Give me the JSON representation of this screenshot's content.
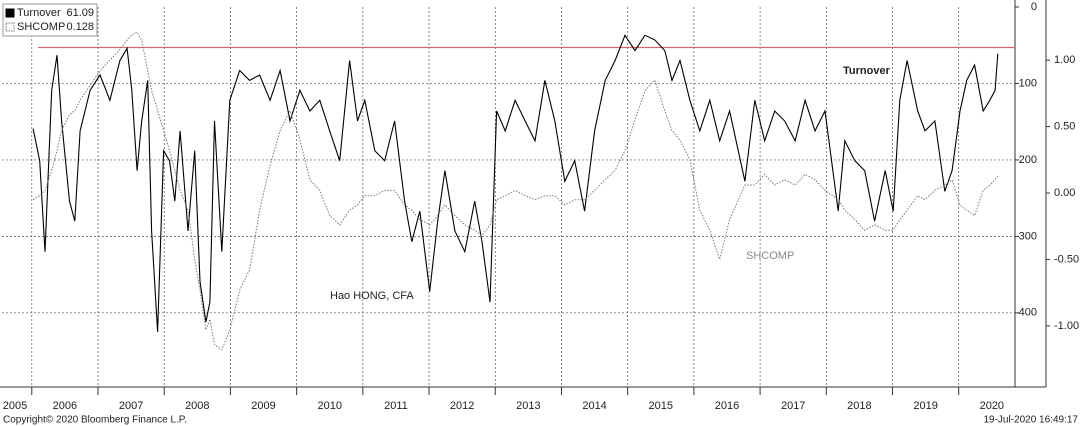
{
  "chart_data": {
    "type": "line",
    "x": [
      2006.02,
      2006.12,
      2006.2,
      2006.3,
      2006.38,
      2006.45,
      2006.57,
      2006.65,
      2006.73,
      2006.88,
      2007.03,
      2007.18,
      2007.33,
      2007.44,
      2007.51,
      2007.59,
      2007.66,
      2007.75,
      2007.81,
      2007.9,
      2007.99,
      2008.08,
      2008.16,
      2008.24,
      2008.36,
      2008.46,
      2008.54,
      2008.63,
      2008.69,
      2008.76,
      2008.87,
      2008.99,
      2009.14,
      2009.29,
      2009.44,
      2009.6,
      2009.75,
      2009.9,
      2010.05,
      2010.2,
      2010.35,
      2010.5,
      2010.65,
      2010.8,
      2010.92,
      2011.03,
      2011.18,
      2011.33,
      2011.48,
      2011.63,
      2011.74,
      2011.86,
      2012.01,
      2012.13,
      2012.24,
      2012.39,
      2012.54,
      2012.69,
      2012.8,
      2012.92,
      2013.02,
      2013.15,
      2013.3,
      2013.45,
      2013.6,
      2013.75,
      2013.9,
      2014.05,
      2014.2,
      2014.35,
      2014.5,
      2014.66,
      2014.81,
      2014.96,
      2015.11,
      2015.26,
      2015.41,
      2015.56,
      2015.67,
      2015.79,
      2015.94,
      2016.09,
      2016.24,
      2016.39,
      2016.54,
      2016.77,
      2016.92,
      2017.07,
      2017.22,
      2017.37,
      2017.53,
      2017.68,
      2017.83,
      2017.98,
      2018.18,
      2018.28,
      2018.43,
      2018.58,
      2018.73,
      2018.89,
      2019.01,
      2019.11,
      2019.22,
      2019.38,
      2019.49,
      2019.64,
      2019.79,
      2019.9,
      2020.02,
      2020.12,
      2020.24,
      2020.37,
      2020.47,
      2020.55,
      2020.59
    ],
    "series": [
      {
        "name": "Turnover",
        "last_value": "61.09",
        "color": "#000000",
        "axis": "y",
        "style": "solid",
        "values": [
          159,
          201,
          320,
          109,
          63,
          149,
          254,
          280,
          162,
          109,
          89,
          122,
          70,
          54,
          109,
          214,
          149,
          96,
          293,
          425,
          188,
          201,
          254,
          162,
          293,
          188,
          359,
          412,
          386,
          149,
          320,
          122,
          83,
          96,
          89,
          122,
          83,
          149,
          109,
          136,
          122,
          162,
          201,
          70,
          149,
          122,
          188,
          201,
          149,
          254,
          307,
          267,
          372,
          280,
          214,
          293,
          320,
          254,
          307,
          386,
          136,
          162,
          122,
          149,
          175,
          96,
          149,
          228,
          201,
          267,
          162,
          96,
          70,
          37,
          57,
          37,
          43,
          57,
          96,
          70,
          122,
          162,
          122,
          175,
          136,
          228,
          122,
          175,
          136,
          149,
          175,
          122,
          162,
          136,
          267,
          175,
          201,
          214,
          280,
          214,
          267,
          122,
          70,
          136,
          162,
          149,
          241,
          214,
          136,
          96,
          76,
          136,
          122,
          109,
          61.09
        ]
      },
      {
        "name": "SHCOMP",
        "last_value": "0.128",
        "color": "#777777",
        "axis": "y2",
        "style": "dotted",
        "values": [
          -0.05,
          -0.02,
          0.02,
          0.17,
          0.32,
          0.47,
          0.59,
          0.62,
          0.7,
          0.81,
          0.92,
          1,
          1.08,
          1.15,
          1.19,
          1.21,
          1.15,
          0.92,
          0.77,
          0.62,
          0.47,
          0.32,
          0.17,
          0.02,
          -0.13,
          -0.5,
          -0.73,
          -1.03,
          -0.95,
          -1.14,
          -1.18,
          -1.03,
          -0.73,
          -0.58,
          -0.13,
          0.21,
          0.47,
          0.62,
          0.4,
          0.1,
          0.02,
          -0.17,
          -0.24,
          -0.13,
          -0.09,
          -0.02,
          -0.02,
          0.02,
          0.02,
          -0.09,
          -0.13,
          -0.2,
          -0.24,
          -0.17,
          -0.09,
          -0.17,
          -0.24,
          -0.28,
          -0.32,
          -0.24,
          -0.05,
          -0.02,
          0.02,
          -0.02,
          -0.05,
          -0.02,
          -0.02,
          -0.09,
          -0.05,
          -0.05,
          0.02,
          0.1,
          0.17,
          0.32,
          0.55,
          0.77,
          0.85,
          0.62,
          0.47,
          0.4,
          0.25,
          -0.13,
          -0.28,
          -0.5,
          -0.2,
          0.06,
          0.06,
          0.14,
          0.06,
          0.1,
          0.06,
          0.14,
          0.1,
          0.02,
          -0.05,
          -0.13,
          -0.2,
          -0.28,
          -0.24,
          -0.28,
          -0.28,
          -0.2,
          -0.13,
          -0.02,
          -0.05,
          0.02,
          0.06,
          0.1,
          -0.09,
          -0.13,
          -0.17,
          0.02,
          0.06,
          0.1,
          0.128
        ]
      }
    ],
    "xlim": [
      2005.55,
      2020.85
    ],
    "xticks": [
      {
        "value": 2005,
        "label": "2005"
      },
      {
        "value": 2006,
        "label": "2006"
      },
      {
        "value": 2007,
        "label": "2007"
      },
      {
        "value": 2008,
        "label": "2008"
      },
      {
        "value": 2009,
        "label": "2009"
      },
      {
        "value": 2010,
        "label": "2010"
      },
      {
        "value": 2011,
        "label": "2011"
      },
      {
        "value": 2012,
        "label": "2012"
      },
      {
        "value": 2013,
        "label": "2013"
      },
      {
        "value": 2014,
        "label": "2014"
      },
      {
        "value": 2015,
        "label": "2015"
      },
      {
        "value": 2016,
        "label": "2016"
      },
      {
        "value": 2017,
        "label": "2017"
      },
      {
        "value": 2018,
        "label": "2018"
      },
      {
        "value": 2019,
        "label": "2019"
      },
      {
        "value": 2020,
        "label": "2020"
      }
    ],
    "ylim": [
      497,
      0
    ],
    "yticks": [
      0,
      100,
      200,
      300,
      400
    ],
    "y2lim": [
      -1.46,
      1.4
    ],
    "y2ticks": [
      {
        "value": 1,
        "label": "1.00"
      },
      {
        "value": 0.5,
        "label": "0.50"
      },
      {
        "value": 0,
        "label": "0.00"
      },
      {
        "value": -0.5,
        "label": "-0.50"
      },
      {
        "value": -1,
        "label": "-1.00"
      }
    ],
    "reference_line": {
      "value": 53,
      "color": "#e06666"
    },
    "grid": true,
    "annotations": [
      "Turnover",
      "SHCOMP",
      "Hao HONG, CFA"
    ],
    "footer": [
      "Copyright© 2020 Bloomberg Finance L.P.",
      "19-Jul-2020 16:49:17"
    ]
  }
}
